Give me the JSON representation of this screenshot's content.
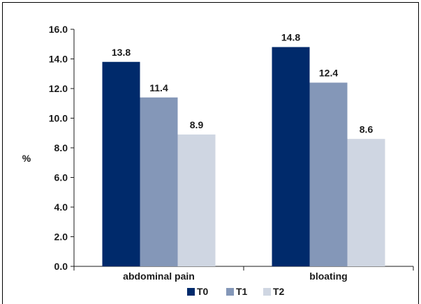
{
  "chart_data": {
    "type": "bar",
    "title": "",
    "xlabel": "",
    "ylabel": "%",
    "ylim": [
      0,
      16
    ],
    "yticks": [
      "0.0",
      "2.0",
      "4.0",
      "6.0",
      "8.0",
      "10.0",
      "12.0",
      "14.0",
      "16.0"
    ],
    "categories": [
      "abdominal pain",
      "bloating"
    ],
    "series": [
      {
        "name": "T0",
        "color": "#002a6b",
        "values": [
          13.8,
          14.8
        ],
        "labels": [
          "13.8",
          "14.8"
        ]
      },
      {
        "name": "T1",
        "color": "#8497b8",
        "values": [
          11.4,
          12.4
        ],
        "labels": [
          "11.4",
          "12.4"
        ]
      },
      {
        "name": "T2",
        "color": "#cfd6e2",
        "values": [
          8.9,
          8.6
        ],
        "labels": [
          "8.9",
          "8.6"
        ]
      }
    ],
    "legend_position": "bottom",
    "grid": false
  }
}
